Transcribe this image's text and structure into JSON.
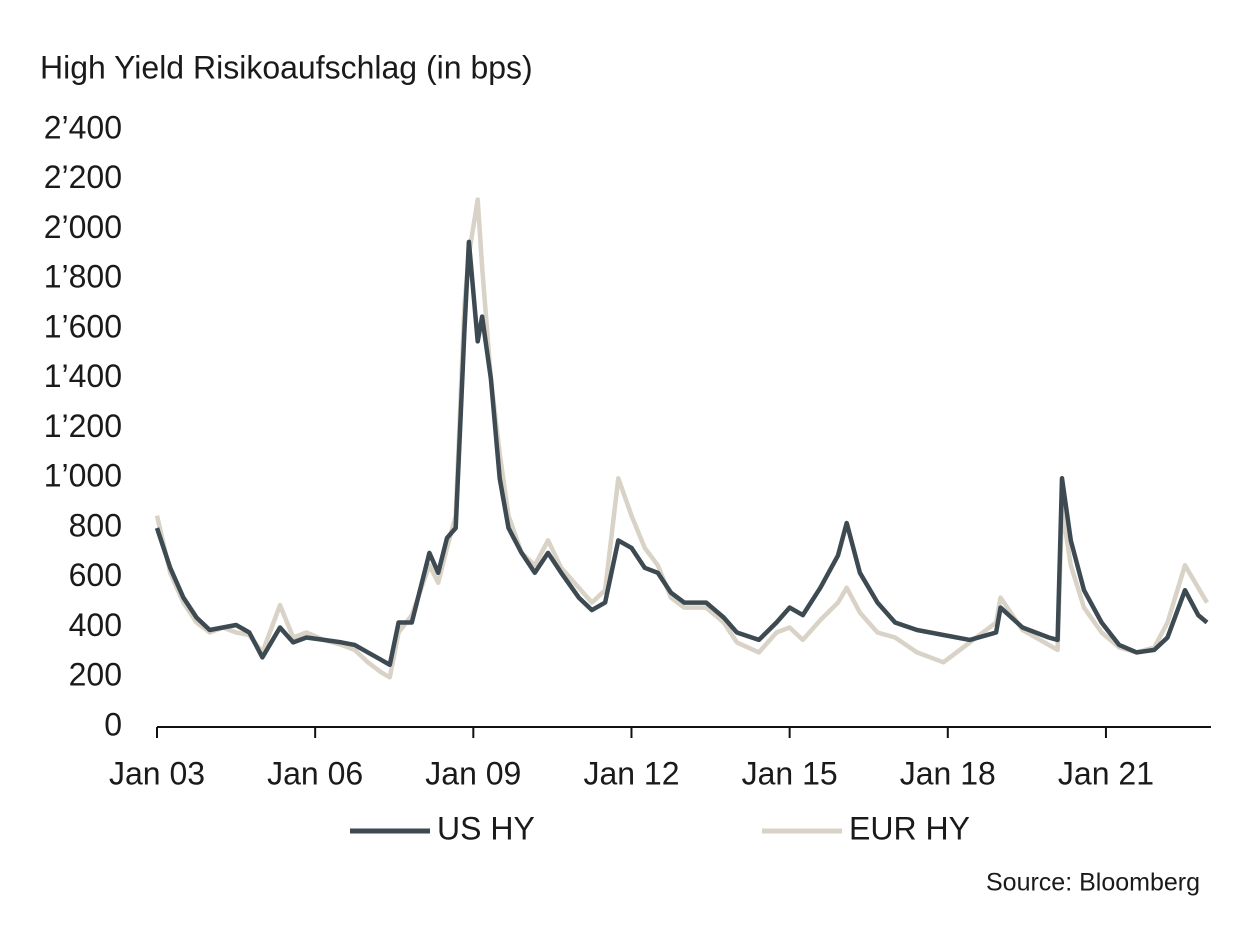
{
  "chart_data": {
    "type": "line",
    "title": "High Yield Risikoaufschlag (in bps)",
    "source": "Source: Bloomberg",
    "legend": "bottom",
    "grid": false,
    "x": [
      "2003-01",
      "2003-04",
      "2003-07",
      "2003-10",
      "2004-01",
      "2004-04",
      "2004-07",
      "2004-10",
      "2005-01",
      "2005-05",
      "2005-08",
      "2005-11",
      "2006-03",
      "2006-07",
      "2006-10",
      "2007-01",
      "2007-04",
      "2007-06",
      "2007-08",
      "2007-11",
      "2008-03",
      "2008-05",
      "2008-07",
      "2008-09",
      "2008-11",
      "2008-12",
      "2009-02",
      "2009-03",
      "2009-05",
      "2009-07",
      "2009-09",
      "2009-12",
      "2010-03",
      "2010-06",
      "2010-09",
      "2011-01",
      "2011-04",
      "2011-07",
      "2011-10",
      "2012-01",
      "2012-04",
      "2012-07",
      "2012-10",
      "2013-01",
      "2013-06",
      "2013-10",
      "2014-01",
      "2014-06",
      "2014-10",
      "2015-01",
      "2015-04",
      "2015-08",
      "2015-12",
      "2016-02",
      "2016-05",
      "2016-09",
      "2017-01",
      "2017-06",
      "2017-12",
      "2018-06",
      "2018-12",
      "2019-01",
      "2019-06",
      "2019-12",
      "2020-02",
      "2020-03",
      "2020-05",
      "2020-08",
      "2020-12",
      "2021-04",
      "2021-08",
      "2021-12",
      "2022-03",
      "2022-07",
      "2022-10",
      "2022-12"
    ],
    "series": [
      {
        "name": "US HY",
        "color": "#3d4a52",
        "values": [
          800,
          640,
          520,
          440,
          390,
          400,
          410,
          380,
          280,
          400,
          340,
          360,
          350,
          340,
          330,
          300,
          270,
          250,
          420,
          420,
          700,
          620,
          760,
          800,
          1600,
          1950,
          1550,
          1650,
          1400,
          1000,
          800,
          700,
          620,
          700,
          620,
          520,
          470,
          500,
          750,
          720,
          640,
          620,
          540,
          500,
          500,
          440,
          380,
          350,
          420,
          480,
          450,
          560,
          690,
          820,
          620,
          500,
          420,
          390,
          370,
          350,
          380,
          480,
          400,
          360,
          350,
          1000,
          750,
          550,
          420,
          330,
          300,
          310,
          360,
          550,
          450,
          420
        ]
      },
      {
        "name": "EUR HY",
        "color": "#d9d2c6",
        "values": [
          850,
          620,
          500,
          420,
          380,
          400,
          380,
          370,
          300,
          490,
          360,
          380,
          350,
          330,
          310,
          260,
          220,
          200,
          380,
          450,
          650,
          580,
          720,
          850,
          1700,
          1900,
          2120,
          1850,
          1400,
          1100,
          850,
          700,
          650,
          750,
          640,
          560,
          500,
          550,
          1000,
          850,
          720,
          650,
          520,
          480,
          480,
          420,
          340,
          300,
          380,
          400,
          350,
          430,
          500,
          560,
          460,
          380,
          360,
          300,
          260,
          340,
          420,
          520,
          390,
          330,
          310,
          880,
          650,
          480,
          380,
          320,
          300,
          320,
          420,
          650,
          560,
          500
        ]
      }
    ],
    "xlim": [
      "2003-01",
      "2022-12"
    ],
    "xticks": [
      {
        "value": "2003-01",
        "label": "Jan 03"
      },
      {
        "value": "2006-01",
        "label": "Jan 06"
      },
      {
        "value": "2009-01",
        "label": "Jan 09"
      },
      {
        "value": "2012-01",
        "label": "Jan 12"
      },
      {
        "value": "2015-01",
        "label": "Jan 15"
      },
      {
        "value": "2018-01",
        "label": "Jan 18"
      },
      {
        "value": "2021-01",
        "label": "Jan 21"
      }
    ],
    "ylim": [
      0,
      2400
    ],
    "yticks": [
      0,
      200,
      400,
      600,
      800,
      {
        "value": 1000,
        "label": "1’000"
      },
      {
        "value": 1200,
        "label": "1’200"
      },
      {
        "value": 1400,
        "label": "1’400"
      },
      {
        "value": 1600,
        "label": "1’600"
      },
      {
        "value": 1800,
        "label": "1’800"
      },
      {
        "value": 2000,
        "label": "2’000"
      },
      {
        "value": 2200,
        "label": "2’200"
      },
      {
        "value": 2400,
        "label": "2’400"
      }
    ]
  }
}
